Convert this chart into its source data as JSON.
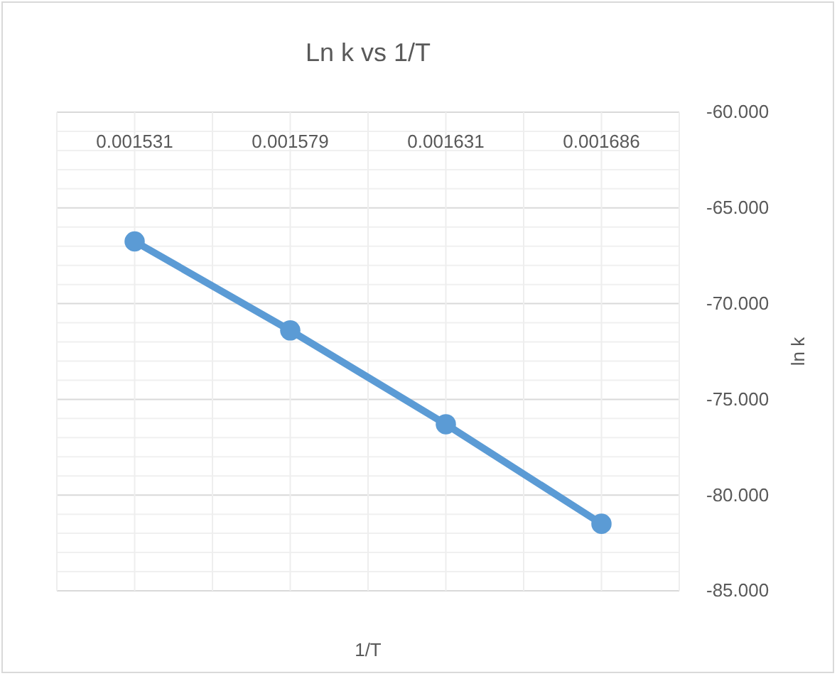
{
  "chart_data": {
    "type": "line",
    "title": "Ln k vs 1/T",
    "xlabel": "1/T",
    "ylabel": "ln k",
    "categories": [
      "0.001531",
      "0.001579",
      "0.001631",
      "0.001686"
    ],
    "series": [
      {
        "color": "#5b9bd5",
        "values": [
          -66.75,
          -71.4,
          -76.3,
          -81.5
        ]
      }
    ],
    "ylim": [
      -85,
      -60
    ],
    "yticks": [
      {
        "value": -85,
        "label": "-85.000"
      },
      {
        "value": -80,
        "label": "-80.000"
      },
      {
        "value": -75,
        "label": "-75.000"
      },
      {
        "value": -70,
        "label": "-70.000"
      },
      {
        "value": -65,
        "label": "-65.000"
      },
      {
        "value": -60,
        "label": "-60.000"
      }
    ],
    "grid": true,
    "marker": "circle",
    "line_style": "solid"
  }
}
